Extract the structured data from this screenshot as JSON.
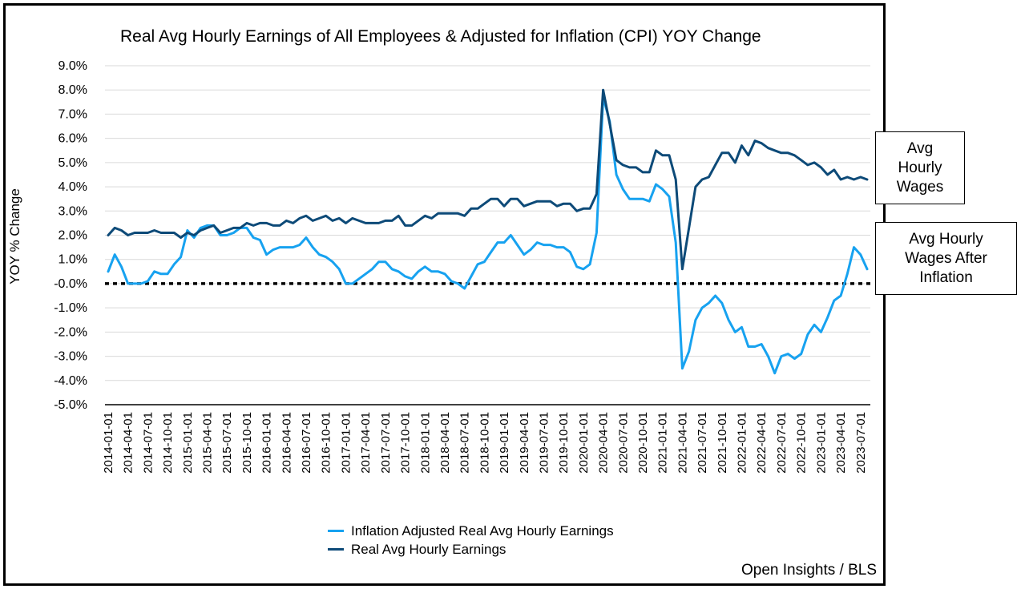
{
  "title": "Real Avg Hourly Earnings of All Employees & Adjusted for Inflation (CPI) YOY Change",
  "source": "Open Insights / BLS",
  "callouts": {
    "wages": [
      "Avg",
      "Hourly",
      "Wages"
    ],
    "after_inflation": [
      "Avg Hourly",
      "Wages After",
      "Inflation"
    ]
  },
  "colors": {
    "real": "#0d4a78",
    "adjusted": "#17a2f0",
    "zero_line": "#000000"
  },
  "chart_data": {
    "type": "line",
    "ylabel": "YOY % Change",
    "ylim": [
      -5.0,
      9.0
    ],
    "yticks": [
      9.0,
      8.0,
      7.0,
      6.0,
      5.0,
      4.0,
      3.0,
      2.0,
      1.0,
      0.0,
      -1.0,
      -2.0,
      -3.0,
      -4.0,
      -5.0
    ],
    "ytick_labels": [
      "9.0%",
      "8.0%",
      "7.0%",
      "6.0%",
      "5.0%",
      "4.0%",
      "3.0%",
      "2.0%",
      "1.0%",
      "-0.0%",
      "-1.0%",
      "-2.0%",
      "-3.0%",
      "-4.0%",
      "-5.0%"
    ],
    "xtick_labels": [
      "2014-01-01",
      "2014-04-01",
      "2014-07-01",
      "2014-10-01",
      "2015-01-01",
      "2015-04-01",
      "2015-07-01",
      "2015-10-01",
      "2016-01-01",
      "2016-04-01",
      "2016-07-01",
      "2016-10-01",
      "2017-01-01",
      "2017-04-01",
      "2017-07-01",
      "2017-10-01",
      "2018-01-01",
      "2018-04-01",
      "2018-07-01",
      "2018-10-01",
      "2019-01-01",
      "2019-04-01",
      "2019-07-01",
      "2019-10-01",
      "2020-01-01",
      "2020-04-01",
      "2020-07-01",
      "2020-10-01",
      "2021-01-01",
      "2021-04-01",
      "2021-07-01",
      "2021-10-01",
      "2022-01-01",
      "2022-04-01",
      "2022-07-01",
      "2022-10-01",
      "2023-01-01",
      "2023-04-01",
      "2023-07-01"
    ],
    "x_start": "2014-01",
    "x_end": "2023-09",
    "reference_line": {
      "y": 0.0,
      "style": "dotted"
    },
    "legend_position": "bottom",
    "series": [
      {
        "name": "Inflation Adjusted Real Avg Hourly Earnings",
        "color_key": "adjusted",
        "values": [
          0.5,
          1.2,
          0.7,
          0.0,
          0.0,
          0.0,
          0.1,
          0.5,
          0.4,
          0.4,
          0.8,
          1.1,
          2.2,
          1.9,
          2.3,
          2.4,
          2.4,
          2.0,
          2.0,
          2.1,
          2.3,
          2.3,
          1.9,
          1.8,
          1.2,
          1.4,
          1.5,
          1.5,
          1.5,
          1.6,
          1.9,
          1.5,
          1.2,
          1.1,
          0.9,
          0.6,
          0.0,
          0.0,
          0.2,
          0.4,
          0.6,
          0.9,
          0.9,
          0.6,
          0.5,
          0.3,
          0.2,
          0.5,
          0.7,
          0.5,
          0.5,
          0.4,
          0.1,
          0.0,
          -0.2,
          0.3,
          0.8,
          0.9,
          1.3,
          1.7,
          1.7,
          2.0,
          1.6,
          1.2,
          1.4,
          1.7,
          1.6,
          1.6,
          1.5,
          1.5,
          1.3,
          0.7,
          0.6,
          0.8,
          2.1,
          7.7,
          6.7,
          4.5,
          3.9,
          3.5,
          3.5,
          3.5,
          3.4,
          4.1,
          3.9,
          3.6,
          1.7,
          -3.5,
          -2.8,
          -1.5,
          -1.0,
          -0.8,
          -0.5,
          -0.8,
          -1.5,
          -2.0,
          -1.8,
          -2.6,
          -2.6,
          -2.5,
          -3.0,
          -3.7,
          -3.0,
          -2.9,
          -3.1,
          -2.9,
          -2.1,
          -1.7,
          -2.0,
          -1.4,
          -0.7,
          -0.5,
          0.4,
          1.5,
          1.2,
          0.6
        ]
      },
      {
        "name": "Real Avg Hourly Earnings",
        "color_key": "real",
        "values": [
          2.0,
          2.3,
          2.2,
          2.0,
          2.1,
          2.1,
          2.1,
          2.2,
          2.1,
          2.1,
          2.1,
          1.9,
          2.1,
          2.0,
          2.2,
          2.3,
          2.4,
          2.1,
          2.2,
          2.3,
          2.3,
          2.5,
          2.4,
          2.5,
          2.5,
          2.4,
          2.4,
          2.6,
          2.5,
          2.7,
          2.8,
          2.6,
          2.7,
          2.8,
          2.6,
          2.7,
          2.5,
          2.7,
          2.6,
          2.5,
          2.5,
          2.5,
          2.6,
          2.6,
          2.8,
          2.4,
          2.4,
          2.6,
          2.8,
          2.7,
          2.9,
          2.9,
          2.9,
          2.9,
          2.8,
          3.1,
          3.1,
          3.3,
          3.5,
          3.5,
          3.2,
          3.5,
          3.5,
          3.2,
          3.3,
          3.4,
          3.4,
          3.4,
          3.2,
          3.3,
          3.3,
          3.0,
          3.1,
          3.1,
          3.7,
          8.0,
          6.6,
          5.1,
          4.9,
          4.8,
          4.8,
          4.6,
          4.6,
          5.5,
          5.3,
          5.3,
          4.3,
          0.6,
          2.3,
          4.0,
          4.3,
          4.4,
          4.9,
          5.4,
          5.4,
          5.0,
          5.7,
          5.3,
          5.9,
          5.8,
          5.6,
          5.5,
          5.4,
          5.4,
          5.3,
          5.1,
          4.9,
          5.0,
          4.8,
          4.5,
          4.7,
          4.3,
          4.4,
          4.3,
          4.4,
          4.3
        ]
      }
    ]
  }
}
